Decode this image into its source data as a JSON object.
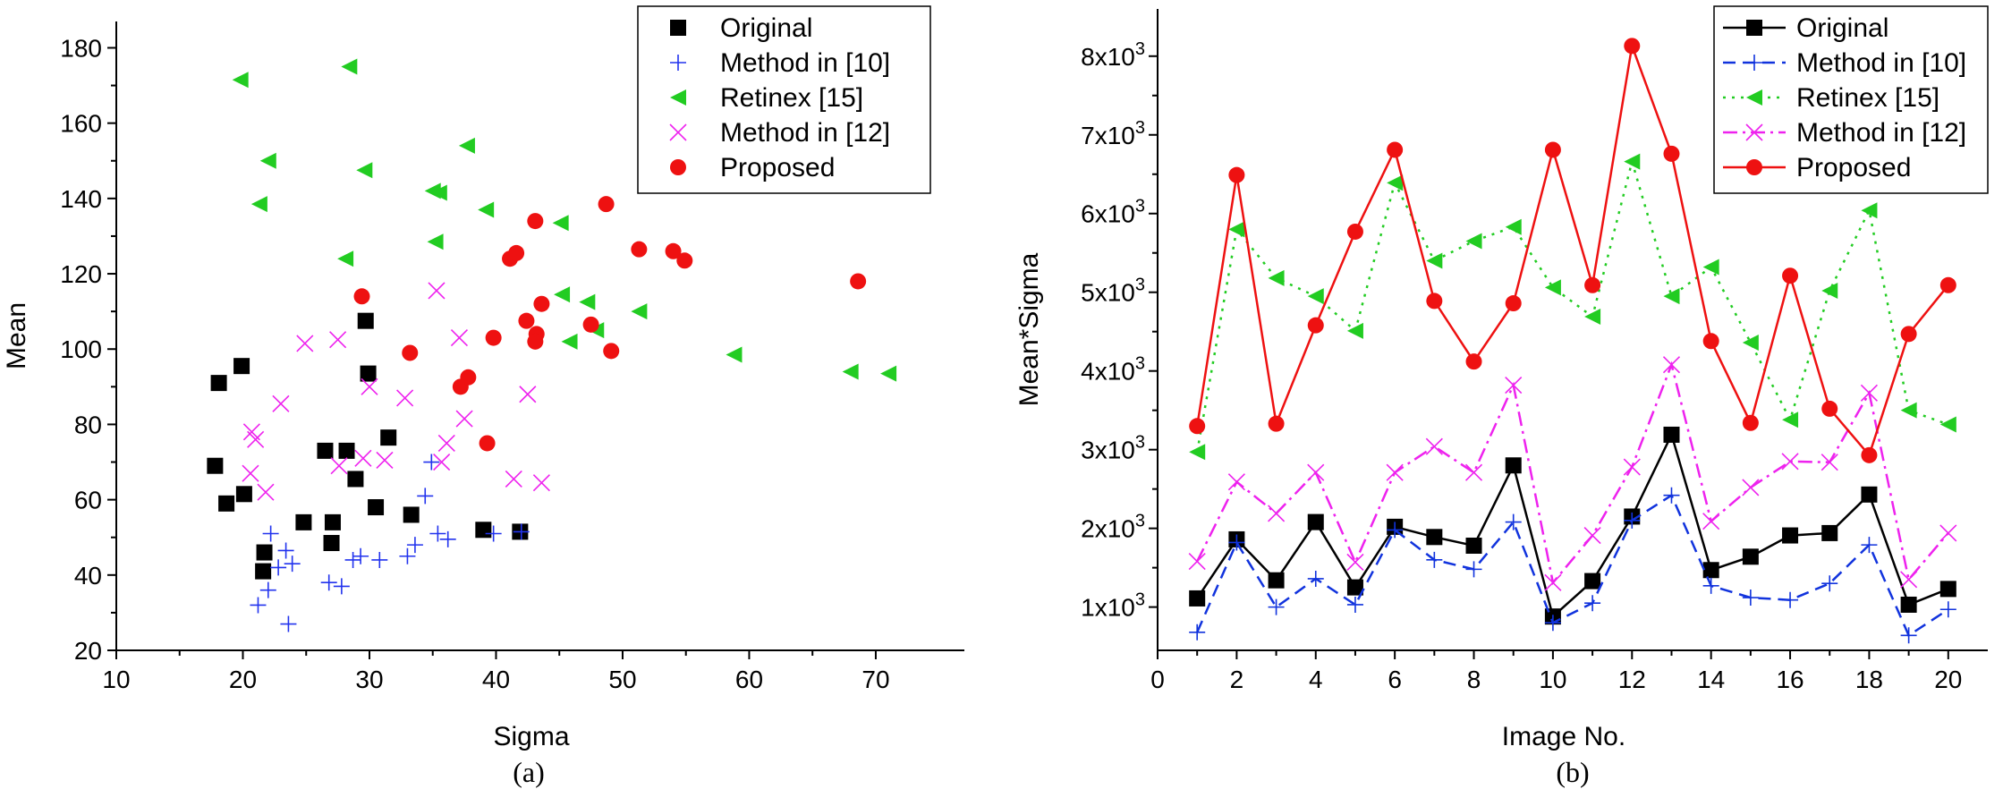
{
  "chart_data": [
    {
      "type": "scatter",
      "panel_label": "(a)",
      "xlabel": "Sigma",
      "ylabel": "Mean",
      "xlim": [
        10,
        77
      ],
      "ylim": [
        20,
        187
      ],
      "x_ticks": [
        10,
        20,
        30,
        40,
        50,
        60,
        70
      ],
      "x_tick_labels": [
        "10",
        "20",
        "30",
        "40",
        "50",
        "60",
        "70"
      ],
      "y_ticks": [
        20,
        40,
        60,
        80,
        100,
        120,
        140,
        160,
        180
      ],
      "y_tick_labels": [
        "20",
        "40",
        "60",
        "80",
        "100",
        "120",
        "140",
        "160",
        "180"
      ],
      "grid": false,
      "legend_position": "top-right",
      "series": [
        {
          "name": "Original",
          "marker": "square",
          "color": "#000000",
          "points": [
            [
              17.8,
              69
            ],
            [
              18.1,
              91
            ],
            [
              18.7,
              59
            ],
            [
              19.9,
              95.5
            ],
            [
              20.1,
              61.5
            ],
            [
              21.7,
              46
            ],
            [
              21.6,
              41
            ],
            [
              24.8,
              54
            ],
            [
              26.5,
              73
            ],
            [
              27.1,
              54
            ],
            [
              27.0,
              48.5
            ],
            [
              28.2,
              73
            ],
            [
              28.9,
              65.5
            ],
            [
              29.7,
              107.5
            ],
            [
              29.9,
              93.5
            ],
            [
              30.5,
              58
            ],
            [
              31.5,
              76.5
            ],
            [
              33.3,
              56
            ],
            [
              39.0,
              52
            ],
            [
              41.9,
              51.5
            ]
          ]
        },
        {
          "name": "Method in [10]",
          "marker": "plus",
          "color": "#2233ee",
          "points": [
            [
              21.2,
              32
            ],
            [
              22.0,
              36
            ],
            [
              22.2,
              51
            ],
            [
              22.8,
              42
            ],
            [
              23.4,
              46.5
            ],
            [
              23.9,
              43
            ],
            [
              23.6,
              27
            ],
            [
              26.8,
              38
            ],
            [
              27.8,
              37
            ],
            [
              28.7,
              44
            ],
            [
              29.3,
              45
            ],
            [
              30.8,
              44
            ],
            [
              33.0,
              45
            ],
            [
              33.6,
              48
            ],
            [
              34.4,
              61
            ],
            [
              34.9,
              70
            ],
            [
              35.4,
              51
            ],
            [
              36.2,
              49.5
            ],
            [
              39.8,
              51
            ],
            [
              42.0,
              51.5
            ]
          ]
        },
        {
          "name": "Retinex [15]",
          "marker": "triangle-left",
          "color": "#22cc22",
          "points": [
            [
              19.8,
              171.5
            ],
            [
              21.3,
              138.5
            ],
            [
              22.0,
              150
            ],
            [
              28.1,
              124
            ],
            [
              28.4,
              175
            ],
            [
              29.6,
              147.5
            ],
            [
              35.0,
              142
            ],
            [
              35.5,
              141.5
            ],
            [
              35.2,
              128.5
            ],
            [
              37.7,
              154
            ],
            [
              39.2,
              137
            ],
            [
              45.1,
              133.5
            ],
            [
              45.2,
              114.5
            ],
            [
              45.8,
              102
            ],
            [
              47.2,
              112.5
            ],
            [
              47.9,
              105
            ],
            [
              51.3,
              110
            ],
            [
              58.8,
              98.5
            ],
            [
              68.0,
              94
            ],
            [
              71.0,
              93.5
            ]
          ]
        },
        {
          "name": "Method in [12]",
          "marker": "x",
          "color": "#ee22ee",
          "points": [
            [
              20.6,
              67
            ],
            [
              20.7,
              78
            ],
            [
              21.0,
              76
            ],
            [
              21.8,
              62
            ],
            [
              23.0,
              85.5
            ],
            [
              24.9,
              101.5
            ],
            [
              27.5,
              102.5
            ],
            [
              27.6,
              69
            ],
            [
              29.5,
              71
            ],
            [
              30.0,
              90
            ],
            [
              31.2,
              70.5
            ],
            [
              32.8,
              87
            ],
            [
              35.3,
              115.5
            ],
            [
              35.7,
              70
            ],
            [
              36.1,
              75
            ],
            [
              37.1,
              103
            ],
            [
              37.5,
              81.5
            ],
            [
              41.4,
              65.5
            ],
            [
              42.5,
              88
            ],
            [
              43.6,
              64.5
            ]
          ]
        },
        {
          "name": "Proposed",
          "marker": "circle",
          "color": "#ee1111",
          "points": [
            [
              29.4,
              114
            ],
            [
              33.2,
              99
            ],
            [
              37.2,
              90
            ],
            [
              37.8,
              92.5
            ],
            [
              39.3,
              75
            ],
            [
              39.8,
              103
            ],
            [
              41.1,
              124
            ],
            [
              41.6,
              125.5
            ],
            [
              42.4,
              107.5
            ],
            [
              43.1,
              134
            ],
            [
              43.2,
              104
            ],
            [
              43.1,
              102
            ],
            [
              43.6,
              112
            ],
            [
              47.5,
              106.5
            ],
            [
              48.7,
              138.5
            ],
            [
              49.1,
              99.5
            ],
            [
              51.3,
              126.5
            ],
            [
              54.0,
              126
            ],
            [
              54.9,
              123.5
            ],
            [
              68.6,
              118
            ]
          ]
        }
      ]
    },
    {
      "type": "line",
      "panel_label": "(b)",
      "xlabel": "Image No.",
      "ylabel": "Mean*Sigma",
      "xlim": [
        0,
        21
      ],
      "ylim": [
        450,
        8600
      ],
      "x_ticks": [
        0,
        2,
        4,
        6,
        8,
        10,
        12,
        14,
        16,
        18,
        20
      ],
      "x_tick_labels": [
        "0",
        "2",
        "4",
        "6",
        "8",
        "10",
        "12",
        "14",
        "16",
        "18",
        "20"
      ],
      "y_ticks": [
        1000,
        2000,
        3000,
        4000,
        5000,
        6000,
        7000,
        8000
      ],
      "y_tick_labels": [
        {
          "mantissa": "1x10",
          "exponent": "3"
        },
        {
          "mantissa": "2x10",
          "exponent": "3"
        },
        {
          "mantissa": "3x10",
          "exponent": "3"
        },
        {
          "mantissa": "4x10",
          "exponent": "3"
        },
        {
          "mantissa": "5x10",
          "exponent": "3"
        },
        {
          "mantissa": "6x10",
          "exponent": "3"
        },
        {
          "mantissa": "7x10",
          "exponent": "3"
        },
        {
          "mantissa": "8x10",
          "exponent": "3"
        }
      ],
      "grid": false,
      "legend_position": "top-right",
      "x": [
        1,
        2,
        3,
        4,
        5,
        6,
        7,
        8,
        9,
        10,
        11,
        12,
        13,
        14,
        15,
        16,
        17,
        18,
        19,
        20
      ],
      "series": [
        {
          "name": "Original",
          "marker": "square",
          "line": "solid",
          "color": "#000000",
          "values": [
            1110,
            1860,
            1340,
            2080,
            1250,
            2020,
            1890,
            1780,
            2800,
            880,
            1330,
            2150,
            3190,
            1470,
            1640,
            1910,
            1940,
            2430,
            1030,
            1230
          ]
        },
        {
          "name": "Method in [10]",
          "marker": "plus",
          "line": "dash",
          "color": "#1133dd",
          "values": [
            680,
            1820,
            1000,
            1360,
            1030,
            1980,
            1600,
            1480,
            2080,
            800,
            1050,
            2100,
            2420,
            1270,
            1120,
            1090,
            1300,
            1790,
            640,
            970
          ]
        },
        {
          "name": "Retinex [15]",
          "marker": "triangle-left",
          "line": "dot",
          "color": "#22cc22",
          "values": [
            2970,
            5800,
            5180,
            4950,
            4510,
            6390,
            5400,
            5650,
            5830,
            5060,
            4690,
            6660,
            4950,
            5320,
            4360,
            3380,
            5020,
            6040,
            3500,
            3320
          ]
        },
        {
          "name": "Method in [12]",
          "marker": "x",
          "line": "dashdot",
          "color": "#ee22ee",
          "values": [
            1580,
            2590,
            2190,
            2710,
            1570,
            2710,
            3040,
            2710,
            3820,
            1310,
            1910,
            2780,
            4080,
            2090,
            2520,
            2850,
            2840,
            3720,
            1350,
            1940
          ]
        },
        {
          "name": "Proposed",
          "marker": "circle",
          "line": "solid",
          "color": "#ee1111",
          "values": [
            3300,
            6490,
            3330,
            4580,
            5770,
            6810,
            4890,
            4120,
            4860,
            6810,
            5090,
            8130,
            6760,
            4380,
            3340,
            5210,
            3520,
            2930,
            4470,
            5090
          ]
        }
      ]
    }
  ]
}
